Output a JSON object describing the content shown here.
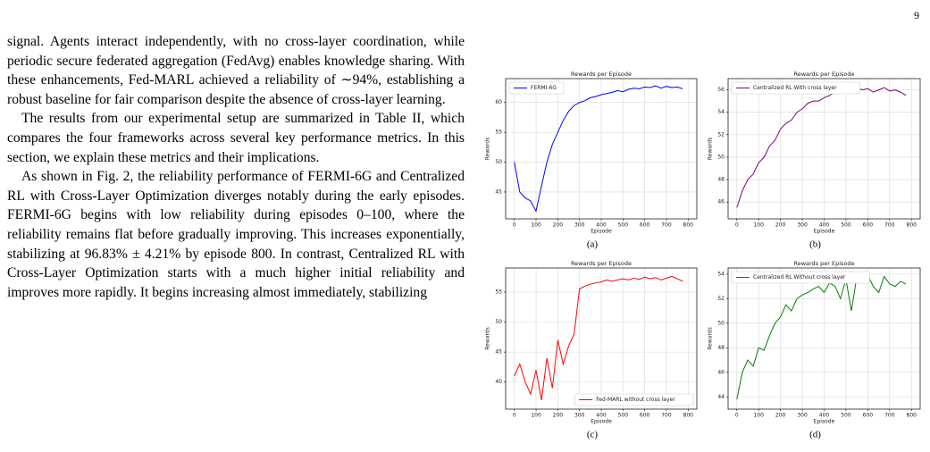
{
  "page_number": "9",
  "paragraphs": [
    "signal. Agents interact independently, with no cross-layer coordination, while periodic secure federated aggregation (FedAvg) enables knowledge sharing. With these enhancements, Fed-MARL achieved a reliability of ∼94%, establishing a robust baseline for fair comparison despite the absence of cross-layer learning.",
    "The results from our experimental setup are summarized in Table II, which compares the four frameworks across several key performance metrics. In this section, we explain these metrics and their implications.",
    "As shown in Fig. 2, the reliability performance of FERMI-6G and Centralized RL with Cross-Layer Optimization diverges notably during the early episodes. FERMI-6G begins with low reliability during episodes 0–100, where the reliability remains flat before gradually improving. This increases exponentially, stabilizing at 96.83% ± 4.21% by episode 800. In contrast, Centralized RL with Cross-Layer Optimization starts with a much higher initial reliability and improves more rapidly. It begins increasing almost immediately, stabilizing"
  ],
  "chart_data": [
    {
      "type": "line",
      "title": "Rewards per Episode",
      "x_label": "Episode",
      "y_label": "Rewards",
      "caption": "(a)",
      "x": [
        0,
        25,
        50,
        75,
        100,
        125,
        150,
        175,
        200,
        225,
        250,
        275,
        300,
        325,
        350,
        375,
        400,
        425,
        450,
        475,
        500,
        525,
        550,
        575,
        600,
        625,
        650,
        675,
        700,
        725,
        750,
        775
      ],
      "series": [
        {
          "name": "FERMI-6G",
          "color": "#0000ff",
          "values": [
            50,
            45,
            44,
            43.5,
            41.8,
            46,
            50,
            53,
            55,
            57,
            58.5,
            59.5,
            60,
            60.3,
            60.8,
            61,
            61.3,
            61.5,
            61.7,
            62,
            61.8,
            62.2,
            62.4,
            62.3,
            62.6,
            62.5,
            62.8,
            62.4,
            62.7,
            62.5,
            62.6,
            62.3
          ]
        }
      ],
      "xlim": [
        -40,
        840
      ],
      "xticks": [
        0,
        100,
        200,
        300,
        400,
        500,
        600,
        700,
        800
      ],
      "ylim": [
        40.5,
        64
      ],
      "yticks": [
        45,
        50,
        55,
        60
      ],
      "grid": true,
      "legend": "upper left"
    },
    {
      "type": "line",
      "title": "Rewards per Episode",
      "x_label": "Episode",
      "y_label": "Rewards",
      "caption": "(b)",
      "x": [
        0,
        25,
        50,
        75,
        100,
        125,
        150,
        175,
        200,
        225,
        250,
        275,
        300,
        325,
        350,
        375,
        400,
        425,
        450,
        475,
        500,
        525,
        550,
        575,
        600,
        625,
        650,
        675,
        700,
        725,
        750,
        775
      ],
      "series": [
        {
          "name": "Centralized RL With cross layer",
          "color": "#800080",
          "values": [
            45.5,
            47,
            48,
            48.5,
            49.5,
            50,
            51,
            51.5,
            52.5,
            53,
            53.3,
            54,
            54.3,
            54.8,
            55,
            55,
            55.3,
            55.5,
            55.8,
            55.7,
            56,
            55.9,
            56.2,
            56,
            56.1,
            55.8,
            56,
            56.2,
            55.9,
            56,
            55.8,
            55.5
          ]
        }
      ],
      "xlim": [
        -40,
        840
      ],
      "xticks": [
        0,
        100,
        200,
        300,
        400,
        500,
        600,
        700,
        800
      ],
      "ylim": [
        44.5,
        57
      ],
      "yticks": [
        46,
        48,
        50,
        52,
        54,
        56
      ],
      "grid": true,
      "legend": "upper left"
    },
    {
      "type": "line",
      "title": "Rewards per Episode",
      "x_label": "Episode",
      "y_label": "Rewards",
      "caption": "(c)",
      "x": [
        0,
        25,
        50,
        75,
        100,
        125,
        150,
        175,
        200,
        225,
        250,
        275,
        300,
        325,
        350,
        375,
        400,
        425,
        450,
        475,
        500,
        525,
        550,
        575,
        600,
        625,
        650,
        675,
        700,
        725,
        750,
        775
      ],
      "series": [
        {
          "name": "Fed-MARL without cross layer",
          "color": "#ff0000",
          "values": [
            41,
            43,
            40,
            38,
            42,
            37,
            44,
            39,
            47,
            43,
            46,
            48,
            55.5,
            56,
            56.3,
            56.5,
            56.7,
            57,
            56.8,
            57,
            57.2,
            57,
            57.3,
            57.1,
            57.5,
            57.2,
            57.4,
            57,
            57.3,
            57.6,
            57.2,
            56.8
          ]
        }
      ],
      "xlim": [
        -40,
        840
      ],
      "xticks": [
        0,
        100,
        200,
        300,
        400,
        500,
        600,
        700,
        800
      ],
      "ylim": [
        35.5,
        59
      ],
      "yticks": [
        40,
        45,
        50,
        55
      ],
      "grid": true,
      "legend": "lower right"
    },
    {
      "type": "line",
      "title": "Rewards per Episode",
      "x_label": "Episode",
      "y_label": "Rewards",
      "caption": "(d)",
      "x": [
        0,
        25,
        50,
        75,
        100,
        125,
        150,
        175,
        200,
        225,
        250,
        275,
        300,
        325,
        350,
        375,
        400,
        425,
        450,
        475,
        500,
        525,
        550,
        575,
        600,
        625,
        650,
        675,
        700,
        725,
        750,
        775
      ],
      "series": [
        {
          "name": "Centralized RL Without cross layer",
          "color": "#008000",
          "values": [
            43.8,
            46,
            47,
            46.5,
            48,
            47.8,
            49,
            50,
            50.5,
            51.5,
            51,
            52,
            52.3,
            52.5,
            52.8,
            53,
            52.5,
            53.3,
            53,
            52,
            53.6,
            51,
            53.8,
            53.5,
            53.9,
            53,
            52.5,
            53.8,
            53.2,
            53,
            53.4,
            53.2
          ]
        }
      ],
      "xlim": [
        -40,
        840
      ],
      "xticks": [
        0,
        100,
        200,
        300,
        400,
        500,
        600,
        700,
        800
      ],
      "ylim": [
        43,
        54.5
      ],
      "yticks": [
        44,
        46,
        48,
        50,
        52,
        54
      ],
      "grid": true,
      "legend": "upper left"
    }
  ]
}
